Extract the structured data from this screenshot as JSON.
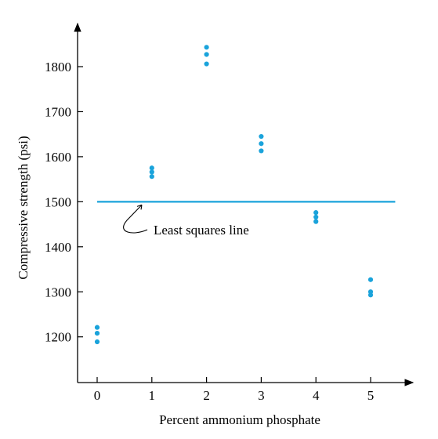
{
  "chart_data": {
    "type": "scatter",
    "xlabel": "Percent ammonium phosphate",
    "ylabel": "Compressive strength (psi)",
    "xlim": [
      -0.35,
      5.65
    ],
    "ylim": [
      1100,
      1900
    ],
    "xticks": [
      0,
      1,
      2,
      3,
      4,
      5
    ],
    "yticks": [
      1200,
      1300,
      1400,
      1500,
      1600,
      1700,
      1800
    ],
    "grid": false,
    "point_color": "#1aa3db",
    "line_color": "#1aa3db",
    "points": [
      {
        "x": 0,
        "y": 1189
      },
      {
        "x": 0,
        "y": 1208
      },
      {
        "x": 0,
        "y": 1221
      },
      {
        "x": 1,
        "y": 1556
      },
      {
        "x": 1,
        "y": 1566
      },
      {
        "x": 1,
        "y": 1575
      },
      {
        "x": 2,
        "y": 1806
      },
      {
        "x": 2,
        "y": 1827
      },
      {
        "x": 2,
        "y": 1843
      },
      {
        "x": 3,
        "y": 1613
      },
      {
        "x": 3,
        "y": 1629
      },
      {
        "x": 3,
        "y": 1645
      },
      {
        "x": 4,
        "y": 1456
      },
      {
        "x": 4,
        "y": 1466
      },
      {
        "x": 4,
        "y": 1476
      },
      {
        "x": 5,
        "y": 1293
      },
      {
        "x": 5,
        "y": 1300
      },
      {
        "x": 5,
        "y": 1327
      }
    ],
    "least_squares_line": {
      "y": 1500,
      "x_start": 0,
      "x_end": 5.45
    },
    "annotation": {
      "text": "Least squares line",
      "x": 0.73,
      "y": 1425
    }
  }
}
